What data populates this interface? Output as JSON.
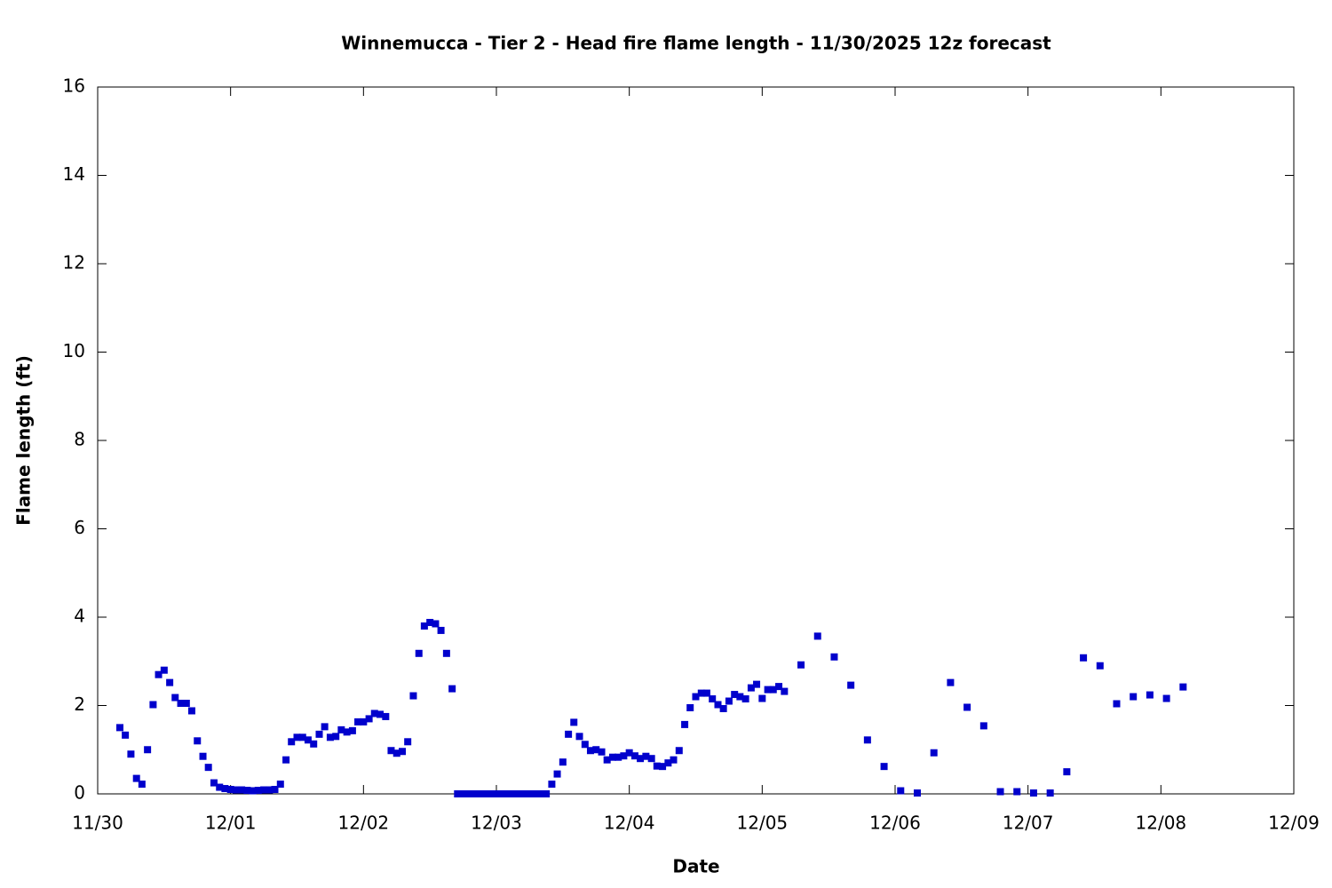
{
  "chart_data": {
    "type": "scatter",
    "title": "Winnemucca - Tier 2 - Head fire flame length - 11/30/2025 12z forecast",
    "x_label": "Date",
    "y_label": "Flame length (ft)",
    "color": "#0000cc",
    "xlim": [
      0,
      9
    ],
    "ylim": [
      0,
      16
    ],
    "xticks": [
      {
        "value": 0,
        "label": "11/30"
      },
      {
        "value": 1,
        "label": "12/01"
      },
      {
        "value": 2,
        "label": "12/02"
      },
      {
        "value": 3,
        "label": "12/03"
      },
      {
        "value": 4,
        "label": "12/04"
      },
      {
        "value": 5,
        "label": "12/05"
      },
      {
        "value": 6,
        "label": "12/06"
      },
      {
        "value": 7,
        "label": "12/07"
      },
      {
        "value": 8,
        "label": "12/08"
      },
      {
        "value": 9,
        "label": "12/09"
      }
    ],
    "yticks": [
      0,
      2,
      4,
      6,
      8,
      10,
      12,
      14,
      16
    ],
    "x": [
      0.167,
      0.208,
      0.25,
      0.292,
      0.333,
      0.375,
      0.417,
      0.458,
      0.5,
      0.542,
      0.583,
      0.625,
      0.667,
      0.708,
      0.75,
      0.792,
      0.833,
      0.875,
      0.917,
      0.958,
      1,
      1.042,
      1.083,
      1.125,
      1.167,
      1.208,
      1.25,
      1.292,
      1.333,
      1.375,
      1.417,
      1.458,
      1.5,
      1.542,
      1.583,
      1.625,
      1.667,
      1.708,
      1.75,
      1.792,
      1.833,
      1.875,
      1.917,
      1.958,
      2,
      2.042,
      2.083,
      2.125,
      2.167,
      2.208,
      2.25,
      2.292,
      2.333,
      2.375,
      2.417,
      2.458,
      2.5,
      2.542,
      2.583,
      2.625,
      2.667,
      2.708,
      2.75,
      2.792,
      2.833,
      2.875,
      2.917,
      2.958,
      3,
      3.042,
      3.083,
      3.125,
      3.167,
      3.208,
      3.25,
      3.292,
      3.333,
      3.375,
      3.417,
      3.458,
      3.5,
      3.542,
      3.583,
      3.625,
      3.667,
      3.708,
      3.75,
      3.792,
      3.833,
      3.875,
      3.917,
      3.958,
      4,
      4.042,
      4.083,
      4.125,
      4.167,
      4.208,
      4.25,
      4.292,
      4.333,
      4.375,
      4.417,
      4.458,
      4.5,
      4.542,
      4.583,
      4.625,
      4.667,
      4.708,
      4.75,
      4.792,
      4.833,
      4.875,
      4.917,
      4.958,
      5,
      5.042,
      5.083,
      5.125,
      5.167,
      5.292,
      5.417,
      5.542,
      5.667,
      5.792,
      5.917,
      6.042,
      6.167,
      6.292,
      6.417,
      6.542,
      6.667,
      6.792,
      6.917,
      7.042,
      7.167,
      7.292,
      7.417,
      7.542,
      7.667,
      7.792,
      7.917,
      8.042,
      8.167
    ],
    "values": [
      1.5,
      1.33,
      0.9,
      0.35,
      0.22,
      1.0,
      2.02,
      2.7,
      2.8,
      2.52,
      2.18,
      2.05,
      2.05,
      1.88,
      1.2,
      0.85,
      0.6,
      0.25,
      0.15,
      0.12,
      0.1,
      0.09,
      0.09,
      0.08,
      0.07,
      0.08,
      0.09,
      0.09,
      0.1,
      0.22,
      0.77,
      1.18,
      1.28,
      1.28,
      1.22,
      1.13,
      1.35,
      1.52,
      1.28,
      1.3,
      1.45,
      1.4,
      1.43,
      1.63,
      1.63,
      1.7,
      1.82,
      1.8,
      1.75,
      0.98,
      0.92,
      0.96,
      1.18,
      2.22,
      3.18,
      3.8,
      3.88,
      3.85,
      3.7,
      3.18,
      2.38,
      0,
      0,
      0,
      0,
      0,
      0,
      0,
      0,
      0,
      0,
      0,
      0,
      0,
      0,
      0,
      0,
      0,
      0.22,
      0.45,
      0.72,
      1.35,
      1.62,
      1.3,
      1.12,
      0.98,
      1.0,
      0.95,
      0.77,
      0.83,
      0.83,
      0.86,
      0.93,
      0.86,
      0.8,
      0.85,
      0.8,
      0.63,
      0.62,
      0.7,
      0.77,
      0.98,
      1.57,
      1.95,
      2.2,
      2.28,
      2.28,
      2.15,
      2.02,
      1.93,
      2.1,
      2.25,
      2.2,
      2.15,
      2.4,
      2.48,
      2.16,
      2.36,
      2.36,
      2.43,
      2.32,
      2.92,
      3.57,
      3.1,
      2.46,
      1.22,
      0.62,
      0.07,
      0.02,
      0.93,
      2.52,
      1.96,
      1.54,
      0.05,
      0.05,
      0.02,
      0.02,
      0.5,
      3.08,
      2.9,
      2.04,
      2.2,
      2.24,
      2.16,
      2.42
    ]
  }
}
